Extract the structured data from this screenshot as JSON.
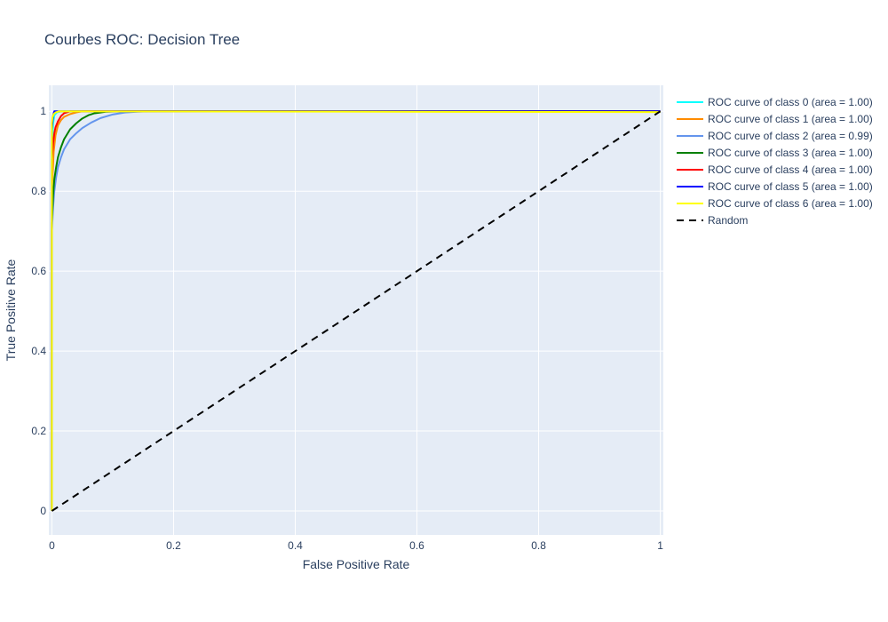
{
  "chart_data": {
    "type": "line",
    "title": "Courbes ROC: Decision Tree",
    "xlabel": "False Positive Rate",
    "ylabel": "True Positive Rate",
    "xlim": [
      -0.005,
      1.005
    ],
    "ylim": [
      -0.06,
      1.065
    ],
    "x_ticks": [
      0,
      0.2,
      0.4,
      0.6,
      0.8,
      1
    ],
    "x_tick_labels": [
      "0",
      "0.2",
      "0.4",
      "0.6",
      "0.8",
      "1"
    ],
    "y_ticks": [
      0,
      0.2,
      0.4,
      0.6,
      0.8,
      1
    ],
    "y_tick_labels": [
      "0",
      "0.2",
      "0.4",
      "0.6",
      "0.8",
      "1"
    ],
    "grid": true,
    "legend_position": "right",
    "plot_background": "#e5ecf6",
    "series": [
      {
        "name": "ROC curve of class 0 (area = 1.00)",
        "color": "#00ffff",
        "dash": "solid",
        "x": [
          0,
          0,
          0.002,
          0.004,
          0.008,
          0.015,
          1
        ],
        "y": [
          0,
          0.9,
          0.97,
          0.99,
          0.997,
          1,
          1
        ]
      },
      {
        "name": "ROC curve of class 1 (area = 1.00)",
        "color": "#ff8c00",
        "dash": "solid",
        "x": [
          0,
          0,
          0.003,
          0.006,
          0.01,
          0.015,
          0.02,
          0.03,
          0.04,
          0.05,
          1
        ],
        "y": [
          0,
          0.8,
          0.9,
          0.94,
          0.965,
          0.978,
          0.986,
          0.993,
          0.997,
          1,
          1
        ]
      },
      {
        "name": "ROC curve of class 2 (area = 0.99)",
        "color": "#6495ed",
        "dash": "solid",
        "x": [
          0,
          0,
          0.002,
          0.004,
          0.007,
          0.01,
          0.015,
          0.02,
          0.03,
          0.04,
          0.05,
          0.065,
          0.08,
          0.1,
          0.12,
          0.14,
          0.16,
          1
        ],
        "y": [
          0,
          0.7,
          0.76,
          0.8,
          0.835,
          0.86,
          0.885,
          0.905,
          0.93,
          0.945,
          0.958,
          0.972,
          0.983,
          0.992,
          0.997,
          0.999,
          1,
          1
        ]
      },
      {
        "name": "ROC curve of class 3 (area = 1.00)",
        "color": "#008000",
        "dash": "solid",
        "x": [
          0,
          0,
          0.002,
          0.004,
          0.007,
          0.01,
          0.015,
          0.02,
          0.03,
          0.04,
          0.05,
          0.06,
          0.07,
          0.09,
          0.12,
          1
        ],
        "y": [
          0,
          0.72,
          0.79,
          0.83,
          0.86,
          0.885,
          0.91,
          0.93,
          0.955,
          0.97,
          0.982,
          0.99,
          0.995,
          0.999,
          1,
          1
        ]
      },
      {
        "name": "ROC curve of class 4 (area = 1.00)",
        "color": "#ff0000",
        "dash": "solid",
        "x": [
          0,
          0,
          0.002,
          0.004,
          0.006,
          0.01,
          0.015,
          0.02,
          0.03,
          1
        ],
        "y": [
          0,
          0.88,
          0.92,
          0.945,
          0.96,
          0.975,
          0.988,
          0.995,
          1,
          1
        ]
      },
      {
        "name": "ROC curve of class 5 (area = 1.00)",
        "color": "#0000ff",
        "dash": "solid",
        "x": [
          0,
          0,
          0.001,
          0.002,
          0.004,
          1
        ],
        "y": [
          0,
          0.95,
          0.975,
          0.99,
          1,
          1
        ]
      },
      {
        "name": "ROC curve of class 6 (area = 1.00)",
        "color": "#ffff00",
        "dash": "solid",
        "x": [
          0,
          0,
          0.001,
          0.003,
          0.006,
          0.012,
          1
        ],
        "y": [
          0,
          0.97,
          0.985,
          0.993,
          0.997,
          1,
          0.998
        ]
      },
      {
        "name": "Random",
        "color": "#000000",
        "dash": "dash",
        "x": [
          0,
          1
        ],
        "y": [
          0,
          1
        ]
      }
    ]
  }
}
